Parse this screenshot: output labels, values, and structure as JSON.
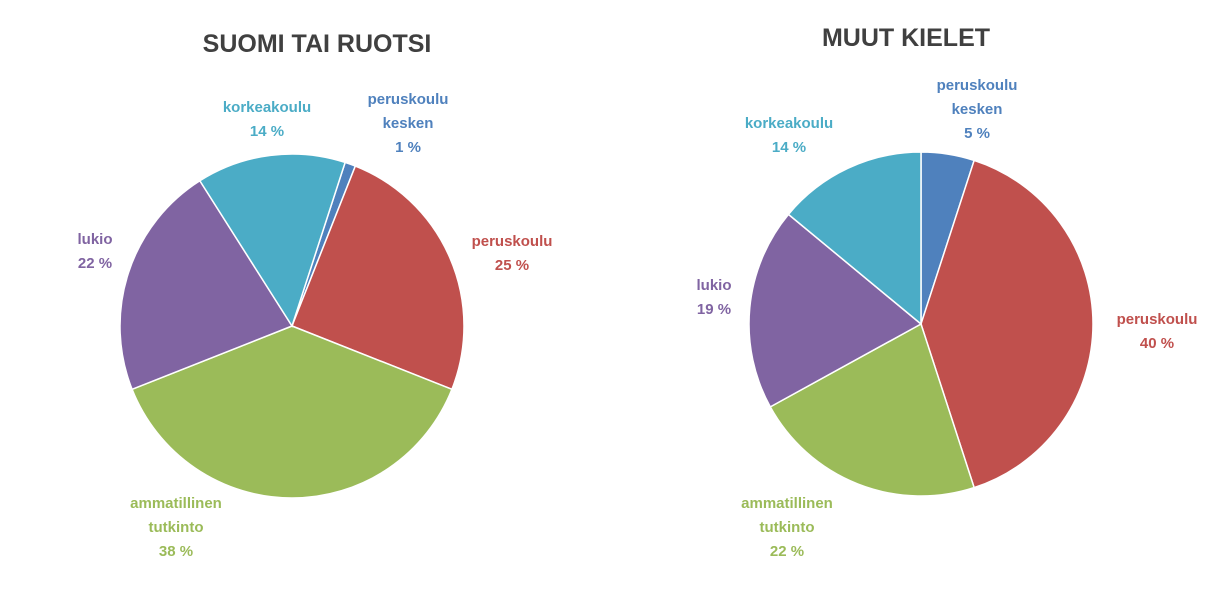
{
  "chart_data": [
    {
      "type": "pie",
      "title": "SUOMI TAI RUOTSI",
      "categories": [
        "peruskoulu kesken",
        "peruskoulu",
        "ammatillinen tutkinto",
        "lukio",
        "korkeakoulu"
      ],
      "values": [
        1,
        25,
        38,
        22,
        14
      ],
      "value_labels": [
        "1 %",
        "25 %",
        "38 %",
        "22 %",
        "14 %"
      ],
      "colors": [
        "#4f81bd",
        "#c0504d",
        "#9bbb59",
        "#8064a2",
        "#4bacc6"
      ]
    },
    {
      "type": "pie",
      "title": "MUUT KIELET",
      "categories": [
        "peruskoulu kesken",
        "peruskoulu",
        "ammatillinen tutkinto",
        "lukio",
        "korkeakoulu"
      ],
      "values": [
        5,
        40,
        22,
        19,
        14
      ],
      "value_labels": [
        "5 %",
        "40 %",
        "22 %",
        "19 %",
        "14 %"
      ],
      "colors": [
        "#4f81bd",
        "#c0504d",
        "#9bbb59",
        "#8064a2",
        "#4bacc6"
      ]
    }
  ]
}
